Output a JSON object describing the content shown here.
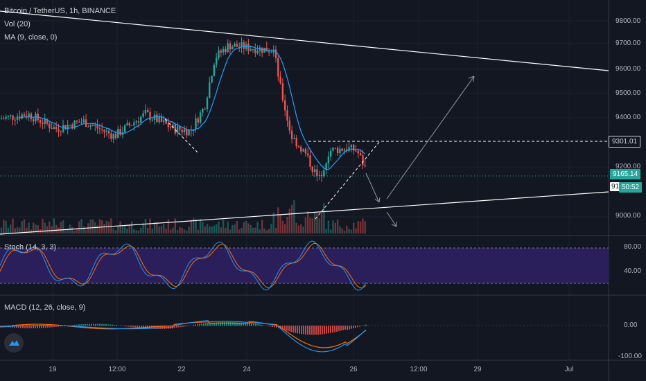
{
  "header": {
    "title": "Bitcoin / TetherUS, 1h, BINANCE",
    "vol": "Vol (20)",
    "ma": "MA (9, close, 0)",
    "stoch": "Stoch (14, 3, 3)",
    "macd": "MACD (12, 26, close, 9)"
  },
  "price_axis": [
    "9800.00",
    "9700.00",
    "9600.00",
    "9500.00",
    "9400.00",
    "9200.00",
    "9000.00"
  ],
  "price_tags": {
    "level": "9301.01",
    "last": "9165.14",
    "countdown": "50:52",
    "partial": "91"
  },
  "stoch_axis": [
    "80.00",
    "40.00"
  ],
  "macd_axis": [
    "0.00",
    "-100.00"
  ],
  "time_axis": [
    "19",
    "12:00",
    "22",
    "24",
    "26",
    "12:00",
    "29",
    "Jul"
  ],
  "colors": {
    "bg": "#131722",
    "up": "#26a69a",
    "down": "#ef5350",
    "ma": "#2196f3",
    "stoch_k": "#2196f3",
    "stoch_d": "#ff6d00",
    "stoch_band": "#2a1f5a",
    "macd": "#2196f3",
    "signal": "#ff6d00",
    "drawing": "#ffffff",
    "tag_green": "#26a69a"
  },
  "icons": {
    "logo": "tradingview-logo-icon"
  },
  "chart_data": {
    "type": "candlestick",
    "symbol": "BTC/USDT",
    "interval": "1h",
    "price_range": [
      8950,
      9850
    ],
    "key_levels": {
      "horizontal_level": 9301.01,
      "last_price": 9165.14
    }
  }
}
